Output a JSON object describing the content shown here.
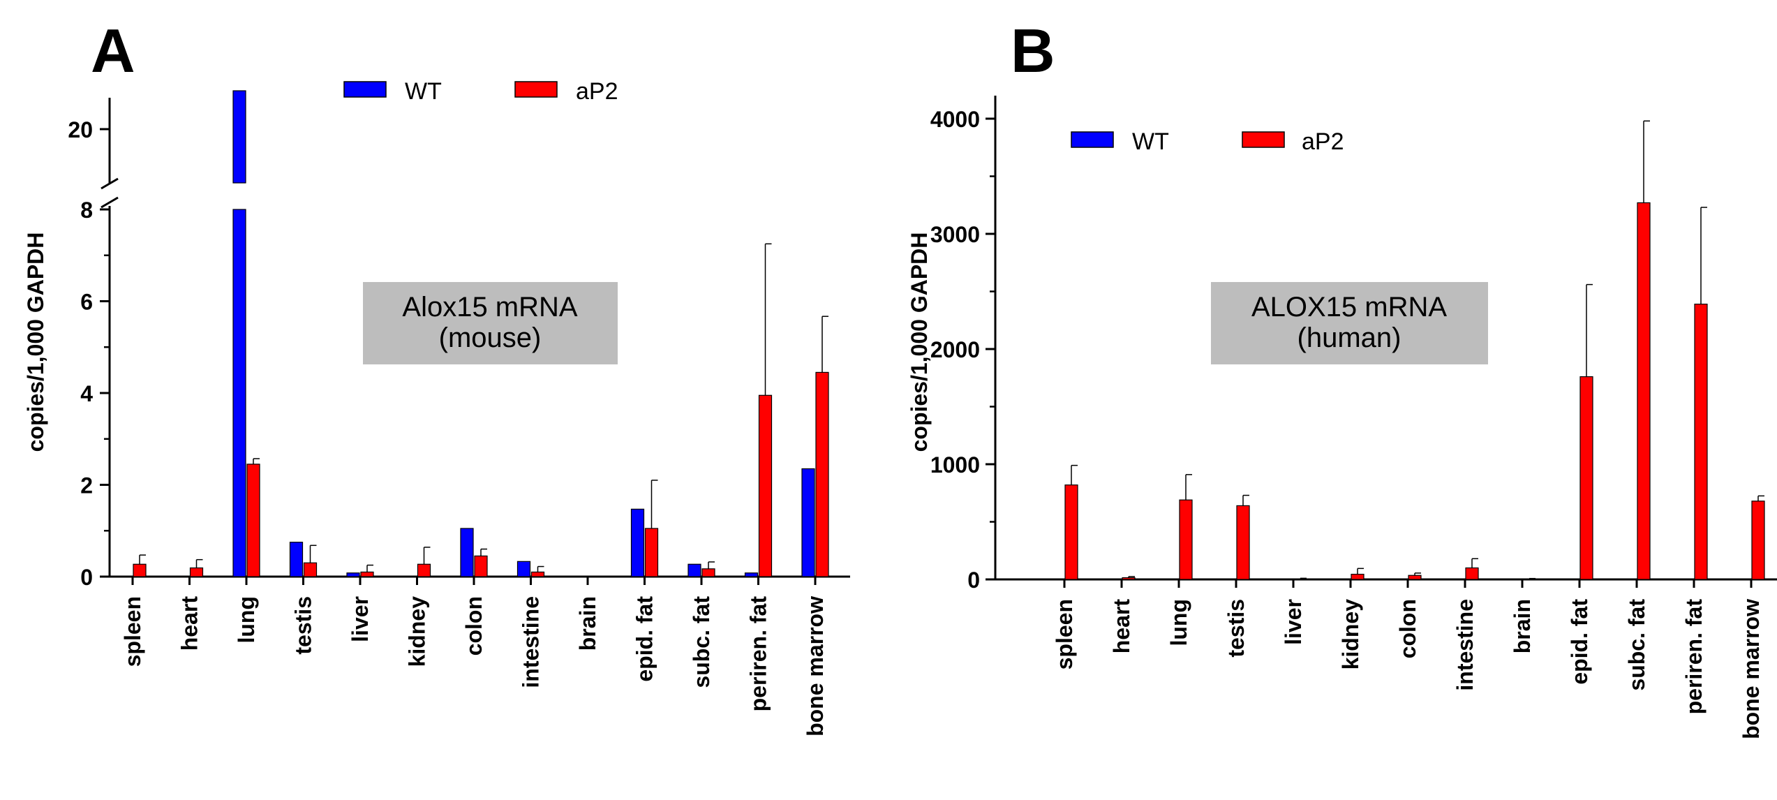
{
  "chart_data": [
    {
      "panel_label": "A",
      "type": "bar",
      "title": "Alox15 mRNA",
      "subtitle": "(mouse)",
      "ylabel": "copies/1,000 GAPDH",
      "xlabel": "",
      "categories": [
        "spleen",
        "heart",
        "lung",
        "testis",
        "liver",
        "kidney",
        "colon",
        "intestine",
        "brain",
        "epid. fat",
        "subc. fat",
        "periren. fat",
        "bone marrow"
      ],
      "series": [
        {
          "name": "WT",
          "color": "#0000ff",
          "values": [
            0,
            0,
            22.5,
            0.75,
            0.08,
            0,
            1.05,
            0.33,
            0,
            1.47,
            0.27,
            0.08,
            2.35
          ],
          "errors": [
            0,
            0,
            0,
            0,
            0,
            0,
            0,
            0,
            0,
            0,
            0,
            0,
            0
          ]
        },
        {
          "name": "aP2",
          "color": "#ff0000",
          "values": [
            0.27,
            0.19,
            2.45,
            0.3,
            0.1,
            0.27,
            0.45,
            0.1,
            0,
            1.05,
            0.17,
            3.95,
            4.45
          ],
          "errors": [
            0.2,
            0.18,
            0.12,
            0.38,
            0.15,
            0.37,
            0.15,
            0.12,
            0,
            1.05,
            0.15,
            3.3,
            1.22
          ]
        }
      ],
      "y_axis_break": true,
      "ylim_lower": [
        0,
        8
      ],
      "ylim_upper": [
        18,
        23
      ],
      "yticks_lower": [
        0,
        2,
        4,
        6,
        8
      ],
      "yticks_upper": [
        20
      ],
      "legend_position": "top-center"
    },
    {
      "panel_label": "B",
      "type": "bar",
      "title": "ALOX15 mRNA",
      "subtitle": "(human)",
      "ylabel": "copies/1,000 GAPDH",
      "xlabel": "",
      "categories": [
        "spleen",
        "heart",
        "lung",
        "testis",
        "liver",
        "kidney",
        "colon",
        "intestine",
        "brain",
        "epid. fat",
        "subc. fat",
        "periren. fat",
        "bone marrow"
      ],
      "series": [
        {
          "name": "WT",
          "color": "#0000ff",
          "values": [
            0,
            0,
            0,
            0,
            0,
            0,
            0,
            0,
            0,
            0,
            0,
            0,
            0
          ],
          "errors": [
            0,
            0,
            0,
            0,
            0,
            0,
            0,
            0,
            0,
            0,
            0,
            0,
            0
          ]
        },
        {
          "name": "aP2",
          "color": "#ff0000",
          "values": [
            820,
            15,
            690,
            640,
            5,
            45,
            35,
            100,
            5,
            1760,
            3270,
            2390,
            680
          ],
          "errors": [
            170,
            10,
            220,
            90,
            5,
            50,
            20,
            80,
            3,
            800,
            710,
            840,
            45
          ]
        }
      ],
      "ylim": [
        0,
        4200
      ],
      "yticks": [
        0,
        1000,
        2000,
        3000,
        4000
      ],
      "legend_position": "top-left"
    }
  ]
}
